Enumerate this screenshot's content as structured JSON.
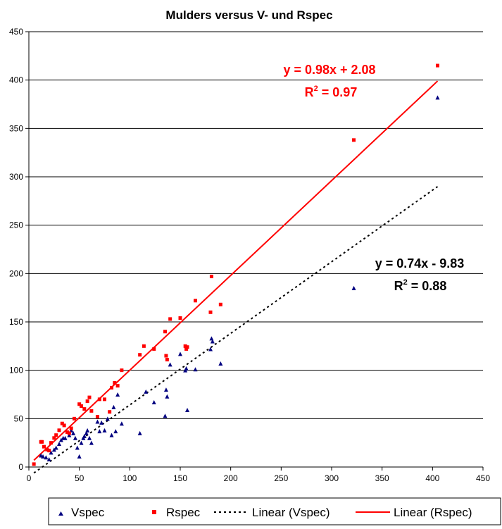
{
  "chart_data": {
    "type": "scatter",
    "title": "Mulders versus V- und Rspec",
    "xlim": [
      0,
      450
    ],
    "ylim": [
      0,
      450
    ],
    "x_ticks": [
      0,
      50,
      100,
      150,
      200,
      250,
      300,
      350,
      400,
      450
    ],
    "y_ticks": [
      0,
      50,
      100,
      150,
      200,
      250,
      300,
      350,
      400,
      450
    ],
    "grid": "horizontal",
    "legend_position": "bottom",
    "series": [
      {
        "name": "Vspec",
        "color": "#000080",
        "marker": "triangle",
        "x": [
          12,
          14,
          17,
          20,
          22,
          25,
          27,
          30,
          32,
          34,
          36,
          40,
          42,
          44,
          46,
          48,
          50,
          52,
          54,
          55,
          57,
          58,
          60,
          62,
          68,
          70,
          72,
          75,
          78,
          82,
          84,
          86,
          88,
          92,
          110,
          116,
          124,
          135,
          136,
          137,
          140,
          150,
          155,
          157,
          156,
          165,
          180,
          181,
          182,
          190,
          322,
          405
        ],
        "y": [
          12,
          11,
          10,
          8,
          15,
          18,
          20,
          24,
          28,
          30,
          30,
          33,
          38,
          35,
          30,
          20,
          11,
          25,
          30,
          32,
          35,
          38,
          30,
          25,
          47,
          37,
          46,
          38,
          50,
          33,
          62,
          37,
          75,
          45,
          35,
          78,
          67,
          53,
          80,
          73,
          106,
          117,
          100,
          59,
          102,
          101,
          122,
          133,
          130,
          107,
          185,
          382
        ]
      },
      {
        "name": "Rspec",
        "color": "#ff0000",
        "marker": "square",
        "x": [
          5,
          12,
          13,
          15,
          18,
          20,
          22,
          25,
          27,
          30,
          33,
          35,
          38,
          40,
          42,
          45,
          50,
          52,
          55,
          58,
          60,
          62,
          68,
          70,
          75,
          80,
          82,
          85,
          88,
          92,
          110,
          114,
          124,
          135,
          136,
          137,
          140,
          150,
          155,
          156,
          157,
          165,
          180,
          181,
          190,
          322,
          405
        ],
        "y": [
          3,
          26,
          26,
          21,
          18,
          17,
          25,
          30,
          33,
          38,
          45,
          43,
          36,
          35,
          40,
          50,
          65,
          63,
          60,
          68,
          72,
          58,
          52,
          70,
          70,
          57,
          82,
          87,
          84,
          100,
          116,
          125,
          122,
          140,
          115,
          111,
          153,
          154,
          125,
          122,
          124,
          172,
          160,
          197,
          168,
          338,
          415
        ]
      },
      {
        "name": "Linear (Vspec)",
        "type": "trendline",
        "color": "#000000",
        "style": "dotted",
        "slope": 0.74,
        "intercept": -9.83,
        "x_range": [
          5,
          405
        ]
      },
      {
        "name": "Linear (Rspec)",
        "type": "trendline",
        "color": "#ff0000",
        "style": "solid",
        "slope": 0.98,
        "intercept": 2.08,
        "x_range": [
          5,
          405
        ]
      }
    ],
    "annotations": {
      "rspec_equation": "y = 0.98x + 2.08",
      "rspec_r2_label": "R",
      "rspec_r2_value": " = 0.97",
      "vspec_equation": "y = 0.74x - 9.83",
      "vspec_r2_label": "R",
      "vspec_r2_value": " = 0.88",
      "r2_superscript": "2"
    }
  }
}
